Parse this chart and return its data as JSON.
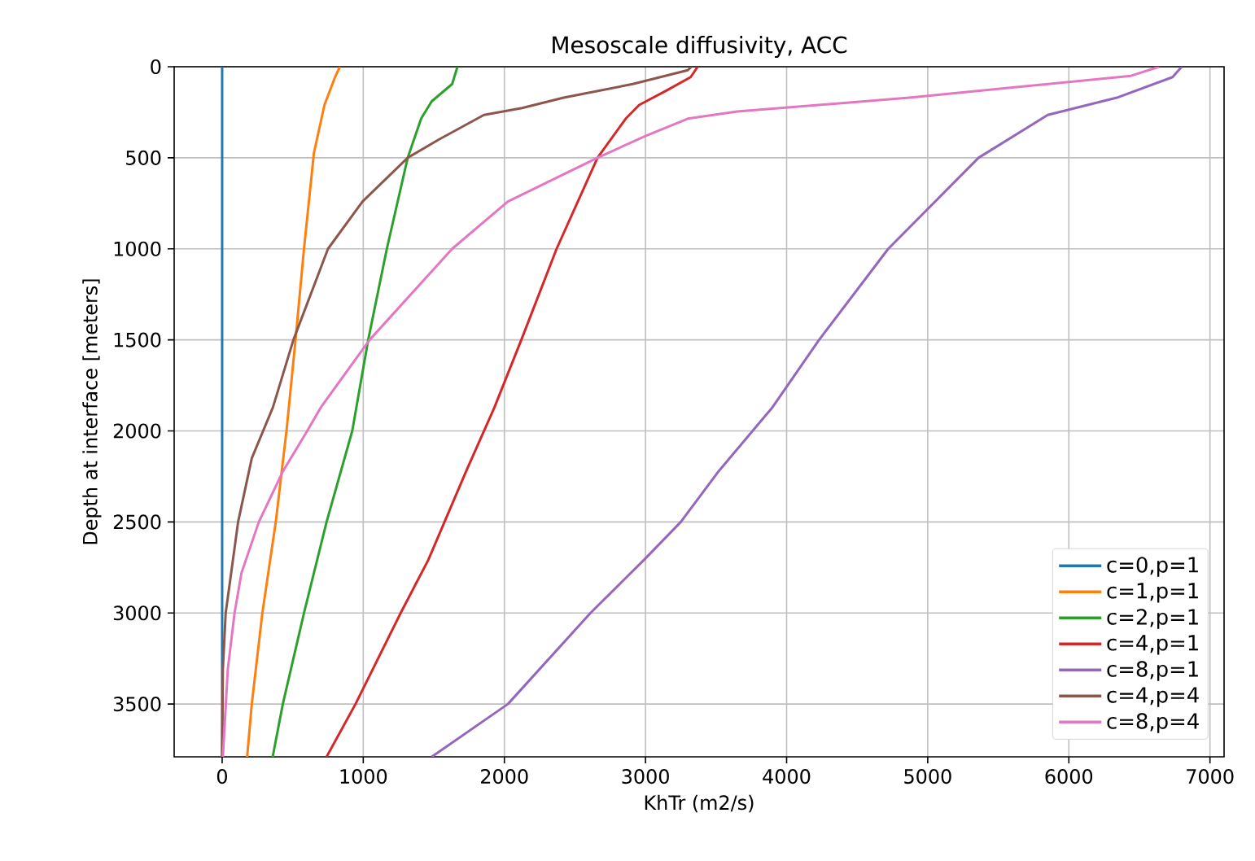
{
  "chart_data": {
    "type": "line",
    "title": "Mesoscale diffusivity, ACC",
    "xlabel": "KhTr (m2/s)",
    "ylabel": "Depth at interface [meters]",
    "xlim": [
      -340,
      7100
    ],
    "xticks": [
      0,
      1000,
      2000,
      3000,
      4000,
      5000,
      6000,
      7000
    ],
    "ylim": [
      3790,
      0
    ],
    "yticks": [
      0,
      500,
      1000,
      1500,
      2000,
      2500,
      3000,
      3500
    ],
    "grid": true,
    "legend": "bottom right",
    "line_style": "solid",
    "series": [
      {
        "name": "c=0,p=1",
        "color": "#1f77b4",
        "x": [
          0,
          0
        ],
        "values": [
          0,
          3790
        ]
      },
      {
        "name": "c=1,p=1",
        "color": "#ff7f0e",
        "x": [
          834,
          800,
          725,
          650,
          580,
          520,
          456,
          380,
          285,
          210,
          177
        ],
        "values": [
          0,
          57,
          210,
          475,
          1000,
          1500,
          2000,
          2500,
          3000,
          3500,
          3790
        ]
      },
      {
        "name": "c=2,p=1",
        "color": "#2ca02c",
        "x": [
          1667,
          1660,
          1630,
          1485,
          1410,
          1315,
          1167,
          1035,
          922,
          740,
          580,
          430,
          358
        ],
        "values": [
          0,
          19,
          95,
          190,
          285,
          500,
          1000,
          1500,
          2000,
          2500,
          3000,
          3500,
          3790
        ]
      },
      {
        "name": "c=4,p=1",
        "color": "#d62728",
        "x": [
          3370,
          3320,
          3150,
          2955,
          2860,
          2660,
          2370,
          2120,
          1930,
          1730,
          1460,
          1265,
          945,
          740
        ],
        "values": [
          0,
          57,
          130,
          210,
          285,
          500,
          1000,
          1500,
          1870,
          2220,
          2710,
          3000,
          3500,
          3790
        ]
      },
      {
        "name": "c=8,p=1",
        "color": "#9467bd",
        "x": [
          6800,
          6735,
          6340,
          5850,
          5360,
          4720,
          4230,
          3900,
          3520,
          3250,
          3000,
          2610,
          2025,
          1485
        ],
        "values": [
          0,
          57,
          170,
          265,
          500,
          1000,
          1500,
          1870,
          2220,
          2500,
          2700,
          3000,
          3500,
          3790
        ]
      },
      {
        "name": "c=4,p=4",
        "color": "#8c564b",
        "x": [
          3325,
          3300,
          2910,
          2420,
          2125,
          1855,
          1535,
          1315,
          995,
          750,
          505,
          360,
          210,
          113,
          64,
          25,
          5,
          0
        ],
        "values": [
          0,
          19,
          95,
          170,
          227,
          265,
          400,
          500,
          740,
          1000,
          1500,
          1870,
          2150,
          2500,
          2780,
          3000,
          3310,
          3790
        ]
      },
      {
        "name": "c=8,p=4",
        "color": "#e377c2",
        "x": [
          6640,
          6440,
          5600,
          4870,
          3650,
          3300,
          3000,
          2660,
          2025,
          1630,
          1045,
          700,
          603,
          432,
          260,
          137,
          88,
          40,
          5
        ],
        "values": [
          0,
          50,
          114,
          170,
          246,
          285,
          380,
          500,
          740,
          1000,
          1500,
          1870,
          2000,
          2220,
          2500,
          2780,
          3000,
          3310,
          3790
        ]
      }
    ]
  }
}
